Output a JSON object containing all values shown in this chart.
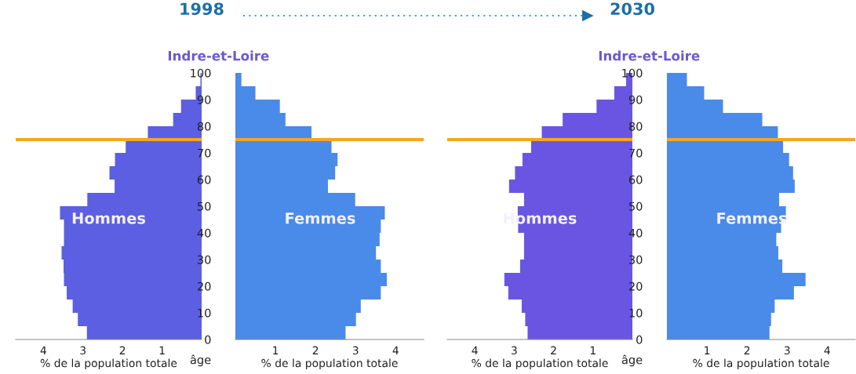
{
  "chart_data": [
    {
      "type": "bar",
      "orientation": "horizontal",
      "title": "Indre-et-Loire",
      "subtitle": "1998",
      "xlabel": "% de la population totale",
      "annotations": [
        "Hommes"
      ],
      "x": [
        2.5,
        7.5,
        12.5,
        17.5,
        22.5,
        27.5,
        32.5,
        37.5,
        42.5,
        47.5,
        52.5,
        57.5,
        62.5,
        67.5,
        72.5,
        77.5,
        82.5,
        87.5,
        92.5,
        97.5
      ],
      "series": [
        {
          "color": "#5c5fe2",
          "values": [
            2.9,
            3.13,
            3.26,
            3.41,
            3.48,
            3.49,
            3.54,
            3.48,
            3.48,
            3.58,
            2.89,
            2.2,
            2.33,
            2.19,
            1.92,
            1.36,
            0.72,
            0.52,
            0.15,
            0.03
          ]
        }
      ],
      "xlim": [
        4.7,
        0
      ],
      "xticks": [
        4,
        3,
        2,
        1
      ],
      "ylim": [
        0,
        100
      ],
      "tick_labels": "x",
      "ref_lines": [
        {
          "axis": "y",
          "value": 75,
          "color": "#f5a623"
        }
      ]
    },
    {
      "type": "bar",
      "orientation": "horizontal",
      "xlabel": "% de la population totale",
      "ylabel": "âge",
      "annotations": [
        "Femmes"
      ],
      "x": [
        2.5,
        7.5,
        12.5,
        17.5,
        22.5,
        27.5,
        32.5,
        37.5,
        42.5,
        47.5,
        52.5,
        57.5,
        62.5,
        67.5,
        72.5,
        77.5,
        82.5,
        87.5,
        92.5,
        97.5
      ],
      "series": [
        {
          "color": "#4a8ae8",
          "values": [
            2.75,
            3.01,
            3.13,
            3.63,
            3.78,
            3.63,
            3.51,
            3.6,
            3.63,
            3.73,
            2.99,
            2.31,
            2.49,
            2.55,
            2.4,
            1.9,
            1.25,
            1.11,
            0.5,
            0.15
          ]
        }
      ],
      "xlim": [
        0,
        4.7
      ],
      "xticks": [
        1,
        2,
        3,
        4
      ],
      "ylim": [
        0,
        100
      ],
      "yticks": [
        0,
        10,
        20,
        30,
        40,
        50,
        60,
        70,
        80,
        90,
        100
      ],
      "ref_lines": [
        {
          "axis": "y",
          "value": 75,
          "color": "#f5a623"
        }
      ]
    },
    {
      "type": "bar",
      "orientation": "horizontal",
      "title": "Indre-et-Loire",
      "subtitle": "2030",
      "xlabel": "% de la population totale",
      "annotations": [
        "Hommes"
      ],
      "x": [
        2.5,
        7.5,
        12.5,
        17.5,
        22.5,
        27.5,
        32.5,
        37.5,
        42.5,
        47.5,
        52.5,
        57.5,
        62.5,
        67.5,
        72.5,
        77.5,
        82.5,
        87.5,
        92.5,
        97.5
      ],
      "series": [
        {
          "color": "#6a55e2",
          "values": [
            2.66,
            2.72,
            2.81,
            3.15,
            3.25,
            2.85,
            2.75,
            2.75,
            2.9,
            2.91,
            2.75,
            3.13,
            2.98,
            2.79,
            2.57,
            2.3,
            1.77,
            0.91,
            0.46,
            0.16
          ]
        }
      ],
      "xlim": [
        4.7,
        0
      ],
      "xticks": [
        4,
        3,
        2,
        1
      ],
      "ylim": [
        0,
        100
      ],
      "tick_labels": "x",
      "ref_lines": [
        {
          "axis": "y",
          "value": 75,
          "color": "#f5a623"
        }
      ]
    },
    {
      "type": "bar",
      "orientation": "horizontal",
      "xlabel": "% de la population totale",
      "ylabel": "âge",
      "annotations": [
        "Femmes"
      ],
      "x": [
        2.5,
        7.5,
        12.5,
        17.5,
        22.5,
        27.5,
        32.5,
        37.5,
        42.5,
        47.5,
        52.5,
        57.5,
        62.5,
        67.5,
        72.5,
        77.5,
        82.5,
        87.5,
        92.5,
        97.5
      ],
      "series": [
        {
          "color": "#4a8ae8",
          "values": [
            2.56,
            2.6,
            2.69,
            3.17,
            3.46,
            2.88,
            2.78,
            2.73,
            2.85,
            2.97,
            2.8,
            3.19,
            3.15,
            3.05,
            2.9,
            2.77,
            2.38,
            1.4,
            0.93,
            0.5
          ]
        }
      ],
      "xlim": [
        0,
        4.7
      ],
      "xticks": [
        1,
        2,
        3,
        4
      ],
      "ylim": [
        0,
        100
      ],
      "yticks": [
        0,
        10,
        20,
        30,
        40,
        50,
        60,
        70,
        80,
        90,
        100
      ],
      "ref_lines": [
        {
          "axis": "y",
          "value": 75,
          "color": "#f5a623"
        }
      ]
    }
  ]
}
